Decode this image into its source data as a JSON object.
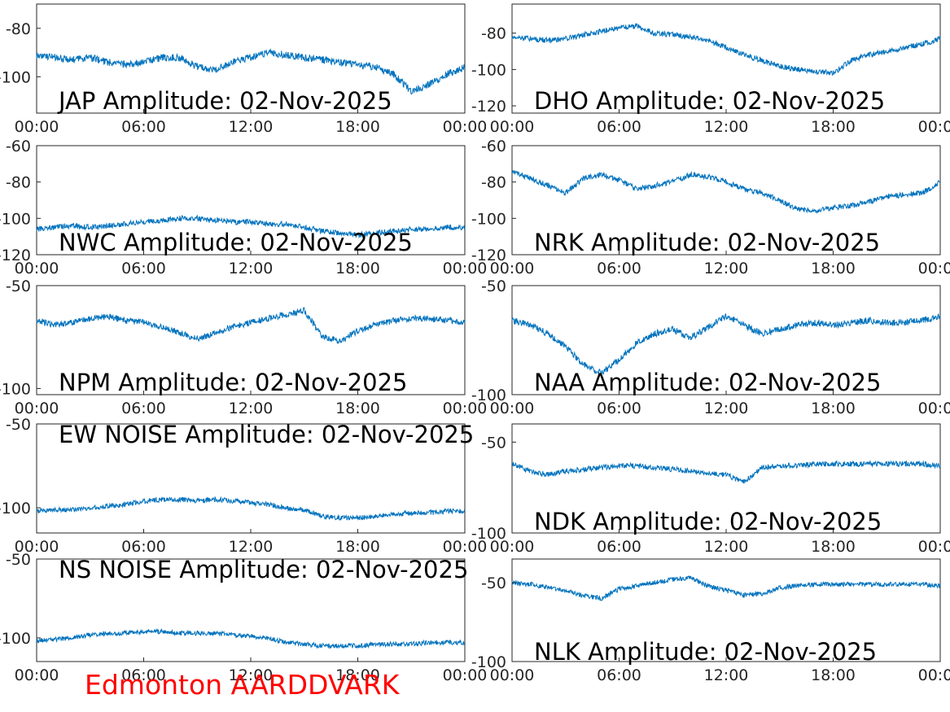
{
  "footer": {
    "label": "Edmonton AARDDVARK",
    "color": "#ff0000"
  },
  "trace_color": "#0072bd",
  "chart_data": [
    {
      "type": "line",
      "title": "JAP Amplitude: 02-Nov-2025",
      "x_ticks": [
        "00:00",
        "06:00",
        "12:00",
        "18:00",
        "00:00"
      ],
      "xlim": [
        "00:00",
        "24:00"
      ],
      "y_ticks": [
        "-80",
        "-100"
      ],
      "ylim": [
        -115,
        -70
      ],
      "series": [
        {
          "x": [
            0,
            1,
            2,
            3,
            4,
            5,
            6,
            7,
            8,
            9,
            10,
            11,
            12,
            13,
            14,
            15,
            16,
            17,
            18,
            19,
            20,
            21,
            22,
            23,
            24
          ],
          "y": [
            -91,
            -92,
            -93,
            -92,
            -94,
            -95,
            -94,
            -92,
            -92,
            -96,
            -97,
            -94,
            -92,
            -90,
            -91,
            -92,
            -93,
            -94,
            -95,
            -96,
            -99,
            -106,
            -103,
            -99,
            -96
          ]
        }
      ]
    },
    {
      "type": "line",
      "title": "DHO Amplitude: 02-Nov-2025",
      "x_ticks": [
        "00:00",
        "06:00",
        "12:00",
        "18:00",
        "00:00"
      ],
      "xlim": [
        "00:00",
        "24:00"
      ],
      "y_ticks": [
        "-80",
        "-100",
        "-120"
      ],
      "ylim": [
        -124,
        -64
      ],
      "series": [
        {
          "x": [
            0,
            1,
            2,
            3,
            4,
            5,
            6,
            7,
            8,
            9,
            10,
            11,
            12,
            13,
            14,
            15,
            16,
            17,
            18,
            19,
            20,
            21,
            22,
            23,
            24
          ],
          "y": [
            -82,
            -83,
            -84,
            -83,
            -81,
            -79,
            -77,
            -76,
            -80,
            -81,
            -82,
            -84,
            -88,
            -92,
            -95,
            -98,
            -100,
            -101,
            -102,
            -95,
            -92,
            -90,
            -88,
            -86,
            -83
          ]
        }
      ]
    },
    {
      "type": "line",
      "title": "NWC Amplitude: 02-Nov-2025",
      "x_ticks": [
        "00:00",
        "06:00",
        "12:00",
        "18:00",
        "00:00"
      ],
      "xlim": [
        "00:00",
        "24:00"
      ],
      "y_ticks": [
        "-60",
        "-80",
        "-100",
        "-120"
      ],
      "ylim": [
        -120,
        -60
      ],
      "series": [
        {
          "x": [
            0,
            1,
            2,
            3,
            4,
            5,
            6,
            7,
            8,
            9,
            10,
            11,
            12,
            13,
            14,
            15,
            16,
            17,
            18,
            19,
            20,
            21,
            22,
            23,
            24
          ],
          "y": [
            -106,
            -105,
            -104,
            -105,
            -104,
            -103,
            -102,
            -101,
            -100,
            -100,
            -101,
            -102,
            -102,
            -103,
            -103,
            -105,
            -107,
            -108,
            -109,
            -108,
            -107,
            -106,
            -106,
            -105,
            -105
          ]
        }
      ]
    },
    {
      "type": "line",
      "title": "NRK Amplitude: 02-Nov-2025",
      "x_ticks": [
        "00:00",
        "06:00",
        "12:00",
        "18:00",
        "00:00"
      ],
      "xlim": [
        "00:00",
        "24:00"
      ],
      "y_ticks": [
        "-60",
        "-80",
        "-100",
        "-120"
      ],
      "ylim": [
        -120,
        -60
      ],
      "series": [
        {
          "x": [
            0,
            1,
            2,
            3,
            4,
            5,
            6,
            7,
            8,
            9,
            10,
            11,
            12,
            13,
            14,
            15,
            16,
            17,
            18,
            19,
            20,
            21,
            22,
            23,
            24
          ],
          "y": [
            -74,
            -78,
            -82,
            -86,
            -78,
            -76,
            -79,
            -84,
            -82,
            -80,
            -76,
            -77,
            -80,
            -84,
            -86,
            -90,
            -95,
            -96,
            -94,
            -93,
            -91,
            -88,
            -87,
            -86,
            -80
          ]
        }
      ]
    },
    {
      "type": "line",
      "title": "NPM Amplitude: 02-Nov-2025",
      "x_ticks": [
        "00:00",
        "06:00",
        "12:00",
        "18:00",
        "00:00"
      ],
      "xlim": [
        "00:00",
        "24:00"
      ],
      "y_ticks": [
        "-50",
        "-100"
      ],
      "ylim": [
        -103,
        -50
      ],
      "series": [
        {
          "x": [
            0,
            1,
            2,
            3,
            4,
            5,
            6,
            7,
            8,
            9,
            10,
            11,
            12,
            13,
            14,
            15,
            16,
            17,
            18,
            19,
            20,
            21,
            22,
            23,
            24
          ],
          "y": [
            -67,
            -69,
            -68,
            -66,
            -65,
            -67,
            -68,
            -70,
            -73,
            -76,
            -73,
            -70,
            -68,
            -66,
            -64,
            -62,
            -75,
            -77,
            -72,
            -69,
            -67,
            -66,
            -66,
            -67,
            -68
          ]
        }
      ]
    },
    {
      "type": "line",
      "title": "NAA Amplitude: 02-Nov-2025",
      "x_ticks": [
        "00:00",
        "06:00",
        "12:00",
        "18:00",
        "00:00"
      ],
      "xlim": [
        "00:00",
        "24:00"
      ],
      "y_ticks": [
        "-50",
        "-100"
      ],
      "ylim": [
        -100,
        -50
      ],
      "series": [
        {
          "x": [
            0,
            1,
            2,
            3,
            4,
            5,
            6,
            7,
            8,
            9,
            10,
            11,
            12,
            13,
            14,
            15,
            16,
            17,
            18,
            19,
            20,
            21,
            22,
            23,
            24
          ],
          "y": [
            -66,
            -68,
            -72,
            -78,
            -86,
            -90,
            -84,
            -76,
            -72,
            -70,
            -74,
            -69,
            -64,
            -68,
            -72,
            -70,
            -68,
            -67,
            -68,
            -67,
            -66,
            -67,
            -67,
            -66,
            -64
          ]
        }
      ]
    },
    {
      "type": "line",
      "title": "EW NOISE Amplitude: 02-Nov-2025",
      "x_ticks": [
        "00:00",
        "06:00",
        "12:00",
        "18:00",
        "00:00"
      ],
      "xlim": [
        "00:00",
        "24:00"
      ],
      "y_ticks": [
        "-50",
        "-100"
      ],
      "ylim": [
        -115,
        -50
      ],
      "series": [
        {
          "x": [
            0,
            1,
            2,
            3,
            4,
            5,
            6,
            7,
            8,
            9,
            10,
            11,
            12,
            13,
            14,
            15,
            16,
            17,
            18,
            19,
            20,
            21,
            22,
            23,
            24
          ],
          "y": [
            -102,
            -101,
            -101,
            -100,
            -99,
            -98,
            -96,
            -95,
            -95,
            -96,
            -95,
            -96,
            -97,
            -98,
            -100,
            -101,
            -105,
            -106,
            -106,
            -105,
            -104,
            -103,
            -103,
            -102,
            -102
          ]
        }
      ]
    },
    {
      "type": "line",
      "title": "NDK Amplitude: 02-Nov-2025",
      "x_ticks": [
        "00:00",
        "06:00",
        "12:00",
        "18:00",
        "00:00"
      ],
      "xlim": [
        "00:00",
        "24:00"
      ],
      "y_ticks": [
        "-50",
        "-100"
      ],
      "ylim": [
        -100,
        -40
      ],
      "series": [
        {
          "x": [
            0,
            1,
            2,
            3,
            4,
            5,
            6,
            7,
            8,
            9,
            10,
            11,
            12,
            13,
            14,
            15,
            16,
            17,
            18,
            19,
            20,
            21,
            22,
            23,
            24
          ],
          "y": [
            -62,
            -66,
            -68,
            -66,
            -65,
            -64,
            -63,
            -63,
            -64,
            -65,
            -66,
            -67,
            -68,
            -72,
            -64,
            -63,
            -63,
            -62,
            -62,
            -62,
            -62,
            -62,
            -62,
            -62,
            -63
          ]
        }
      ]
    },
    {
      "type": "line",
      "title": "NS NOISE Amplitude: 02-Nov-2025",
      "x_ticks": [
        "00:00",
        "06:00",
        "12:00",
        "18:00",
        "00:00"
      ],
      "xlim": [
        "00:00",
        "24:00"
      ],
      "y_ticks": [
        "-50",
        "-100"
      ],
      "ylim": [
        -115,
        -50
      ],
      "series": [
        {
          "x": [
            0,
            1,
            2,
            3,
            4,
            5,
            6,
            7,
            8,
            9,
            10,
            11,
            12,
            13,
            14,
            15,
            16,
            17,
            18,
            19,
            20,
            21,
            22,
            23,
            24
          ],
          "y": [
            -102,
            -101,
            -100,
            -98,
            -97,
            -97,
            -96,
            -96,
            -97,
            -97,
            -97,
            -98,
            -99,
            -100,
            -103,
            -104,
            -105,
            -105,
            -105,
            -104,
            -104,
            -104,
            -103,
            -103,
            -103
          ]
        }
      ]
    },
    {
      "type": "line",
      "title": "NLK Amplitude: 02-Nov-2025",
      "x_ticks": [
        "00:00",
        "06:00",
        "12:00",
        "18:00",
        "00:00"
      ],
      "xlim": [
        "00:00",
        "24:00"
      ],
      "y_ticks": [
        "-50",
        "-100"
      ],
      "ylim": [
        -100,
        -35
      ],
      "series": [
        {
          "x": [
            0,
            1,
            2,
            3,
            4,
            5,
            6,
            7,
            8,
            9,
            10,
            11,
            12,
            13,
            14,
            15,
            16,
            17,
            18,
            19,
            20,
            21,
            22,
            23,
            24
          ],
          "y": [
            -50,
            -51,
            -53,
            -55,
            -58,
            -60,
            -54,
            -52,
            -50,
            -48,
            -47,
            -52,
            -55,
            -58,
            -57,
            -53,
            -52,
            -51,
            -51,
            -51,
            -51,
            -51,
            -51,
            -51,
            -52
          ]
        }
      ]
    }
  ]
}
